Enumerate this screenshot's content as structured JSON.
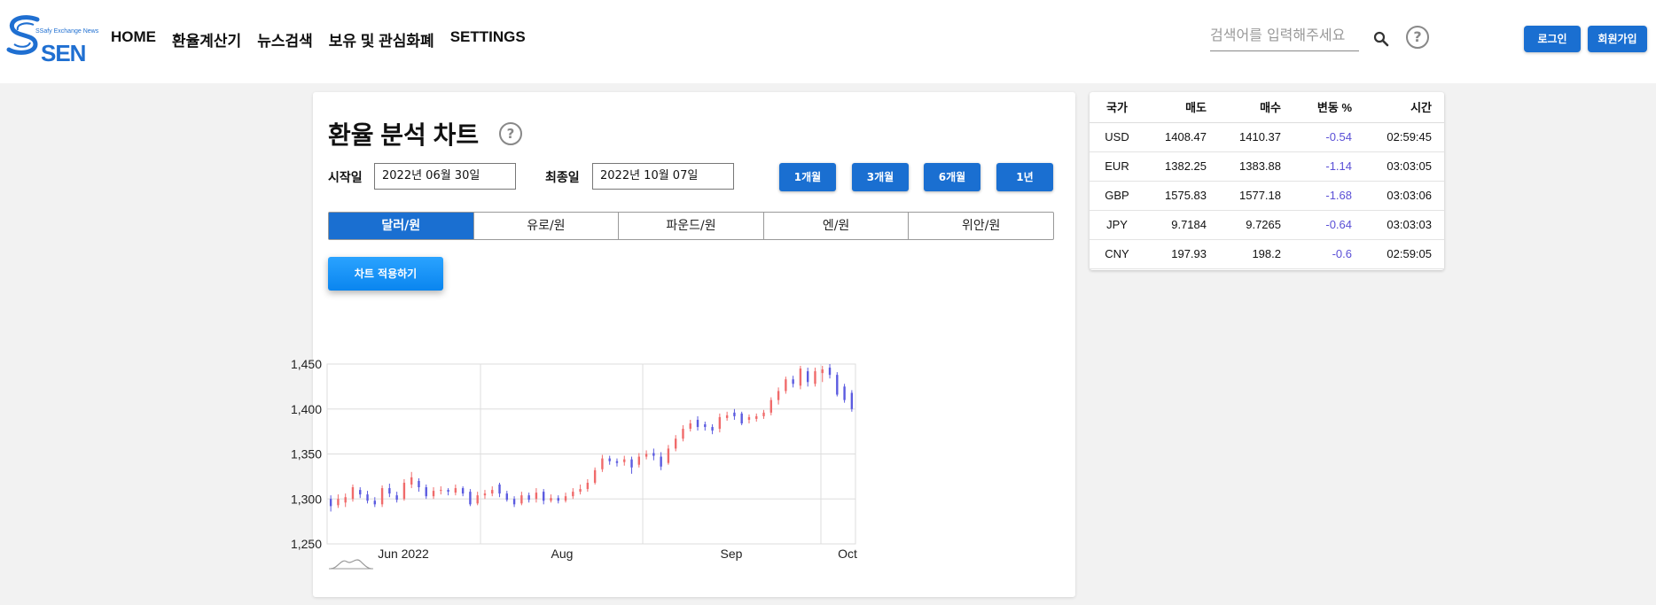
{
  "header": {
    "logo": {
      "subtitle": "SSafy Exchange News",
      "text": "SEN"
    },
    "nav": [
      "HOME",
      "환율계산기",
      "뉴스검색",
      "보유 및 관심화폐",
      "SETTINGS"
    ],
    "search": {
      "placeholder": "검색어를 입력해주세요",
      "value": ""
    },
    "help_symbol": "?",
    "login_label": "로그인",
    "signup_label": "회원가입"
  },
  "main": {
    "title": "환율 분석 차트",
    "help_symbol": "?",
    "start_label": "시작일",
    "start_date": "2022년 06월 30일",
    "end_label": "최종일",
    "end_date": "2022년 10월 07일",
    "period_buttons": [
      "1개월",
      "3개월",
      "6개월",
      "1년"
    ],
    "currency_tabs": [
      "달러/원",
      "유로/원",
      "파운드/원",
      "엔/원",
      "위안/원"
    ],
    "active_tab": 0,
    "apply_label": "차트 적용하기"
  },
  "chart_data": {
    "type": "candlestick",
    "ylim": [
      1250,
      1450
    ],
    "yticks": [
      "1,450",
      "1,400",
      "1,350",
      "1,300",
      "1,250"
    ],
    "xticks": [
      "Jun 2022",
      "Aug",
      "Sep",
      "Oct"
    ],
    "up_color": "#f06b6b",
    "down_color": "#5b5be0",
    "candles": [
      {
        "o": 1300,
        "c": 1292,
        "h": 1304,
        "l": 1286
      },
      {
        "o": 1293,
        "c": 1300,
        "h": 1305,
        "l": 1290
      },
      {
        "o": 1296,
        "c": 1302,
        "h": 1306,
        "l": 1291
      },
      {
        "o": 1300,
        "c": 1313,
        "h": 1316,
        "l": 1297
      },
      {
        "o": 1310,
        "c": 1305,
        "h": 1313,
        "l": 1301
      },
      {
        "o": 1305,
        "c": 1298,
        "h": 1309,
        "l": 1295
      },
      {
        "o": 1298,
        "c": 1294,
        "h": 1302,
        "l": 1291
      },
      {
        "o": 1294,
        "c": 1312,
        "h": 1315,
        "l": 1291
      },
      {
        "o": 1312,
        "c": 1306,
        "h": 1317,
        "l": 1302
      },
      {
        "o": 1304,
        "c": 1299,
        "h": 1308,
        "l": 1296
      },
      {
        "o": 1300,
        "c": 1318,
        "h": 1322,
        "l": 1298
      },
      {
        "o": 1316,
        "c": 1324,
        "h": 1330,
        "l": 1312
      },
      {
        "o": 1320,
        "c": 1313,
        "h": 1323,
        "l": 1308
      },
      {
        "o": 1313,
        "c": 1303,
        "h": 1316,
        "l": 1300
      },
      {
        "o": 1303,
        "c": 1309,
        "h": 1313,
        "l": 1300
      },
      {
        "o": 1309,
        "c": 1310,
        "h": 1314,
        "l": 1305
      },
      {
        "o": 1310,
        "c": 1308,
        "h": 1312,
        "l": 1304
      },
      {
        "o": 1307,
        "c": 1312,
        "h": 1316,
        "l": 1304
      },
      {
        "o": 1312,
        "c": 1306,
        "h": 1314,
        "l": 1303
      },
      {
        "o": 1308,
        "c": 1294,
        "h": 1311,
        "l": 1292
      },
      {
        "o": 1295,
        "c": 1304,
        "h": 1308,
        "l": 1293
      },
      {
        "o": 1304,
        "c": 1306,
        "h": 1310,
        "l": 1300
      },
      {
        "o": 1306,
        "c": 1310,
        "h": 1314,
        "l": 1303
      },
      {
        "o": 1316,
        "c": 1306,
        "h": 1318,
        "l": 1302
      },
      {
        "o": 1306,
        "c": 1299,
        "h": 1309,
        "l": 1297
      },
      {
        "o": 1300,
        "c": 1294,
        "h": 1303,
        "l": 1291
      },
      {
        "o": 1295,
        "c": 1304,
        "h": 1308,
        "l": 1293
      },
      {
        "o": 1304,
        "c": 1299,
        "h": 1307,
        "l": 1296
      },
      {
        "o": 1300,
        "c": 1307,
        "h": 1312,
        "l": 1296
      },
      {
        "o": 1308,
        "c": 1298,
        "h": 1311,
        "l": 1294
      },
      {
        "o": 1298,
        "c": 1301,
        "h": 1305,
        "l": 1296
      },
      {
        "o": 1301,
        "c": 1298,
        "h": 1304,
        "l": 1295
      },
      {
        "o": 1298,
        "c": 1303,
        "h": 1307,
        "l": 1296
      },
      {
        "o": 1303,
        "c": 1308,
        "h": 1312,
        "l": 1300
      },
      {
        "o": 1308,
        "c": 1311,
        "h": 1316,
        "l": 1305
      },
      {
        "o": 1311,
        "c": 1318,
        "h": 1322,
        "l": 1308
      },
      {
        "o": 1318,
        "c": 1332,
        "h": 1335,
        "l": 1316
      },
      {
        "o": 1333,
        "c": 1345,
        "h": 1349,
        "l": 1330
      },
      {
        "o": 1345,
        "c": 1342,
        "h": 1348,
        "l": 1338
      },
      {
        "o": 1342,
        "c": 1340,
        "h": 1345,
        "l": 1336
      },
      {
        "o": 1341,
        "c": 1344,
        "h": 1348,
        "l": 1337
      },
      {
        "o": 1344,
        "c": 1335,
        "h": 1347,
        "l": 1328
      },
      {
        "o": 1338,
        "c": 1347,
        "h": 1351,
        "l": 1335
      },
      {
        "o": 1347,
        "c": 1350,
        "h": 1354,
        "l": 1344
      },
      {
        "o": 1351,
        "c": 1348,
        "h": 1356,
        "l": 1343
      },
      {
        "o": 1347,
        "c": 1336,
        "h": 1352,
        "l": 1332
      },
      {
        "o": 1340,
        "c": 1356,
        "h": 1360,
        "l": 1338
      },
      {
        "o": 1356,
        "c": 1367,
        "h": 1371,
        "l": 1353
      },
      {
        "o": 1367,
        "c": 1378,
        "h": 1382,
        "l": 1364
      },
      {
        "o": 1378,
        "c": 1384,
        "h": 1388,
        "l": 1375
      },
      {
        "o": 1388,
        "c": 1380,
        "h": 1392,
        "l": 1376
      },
      {
        "o": 1383,
        "c": 1380,
        "h": 1386,
        "l": 1376
      },
      {
        "o": 1380,
        "c": 1376,
        "h": 1383,
        "l": 1372
      },
      {
        "o": 1378,
        "c": 1391,
        "h": 1395,
        "l": 1374
      },
      {
        "o": 1390,
        "c": 1393,
        "h": 1397,
        "l": 1387
      },
      {
        "o": 1396,
        "c": 1392,
        "h": 1400,
        "l": 1388
      },
      {
        "o": 1395,
        "c": 1384,
        "h": 1397,
        "l": 1382
      },
      {
        "o": 1388,
        "c": 1391,
        "h": 1394,
        "l": 1384
      },
      {
        "o": 1389,
        "c": 1392,
        "h": 1395,
        "l": 1386
      },
      {
        "o": 1392,
        "c": 1396,
        "h": 1399,
        "l": 1389
      },
      {
        "o": 1396,
        "c": 1410,
        "h": 1413,
        "l": 1393
      },
      {
        "o": 1410,
        "c": 1420,
        "h": 1424,
        "l": 1405
      },
      {
        "o": 1420,
        "c": 1433,
        "h": 1436,
        "l": 1417
      },
      {
        "o": 1433,
        "c": 1428,
        "h": 1437,
        "l": 1424
      },
      {
        "o": 1426,
        "c": 1445,
        "h": 1448,
        "l": 1422
      },
      {
        "o": 1442,
        "c": 1430,
        "h": 1446,
        "l": 1425
      },
      {
        "o": 1428,
        "c": 1442,
        "h": 1446,
        "l": 1425
      },
      {
        "o": 1440,
        "c": 1444,
        "h": 1448,
        "l": 1430
      },
      {
        "o": 1446,
        "c": 1438,
        "h": 1450,
        "l": 1434
      },
      {
        "o": 1438,
        "c": 1416,
        "h": 1441,
        "l": 1414
      },
      {
        "o": 1425,
        "c": 1410,
        "h": 1428,
        "l": 1407
      },
      {
        "o": 1418,
        "c": 1400,
        "h": 1421,
        "l": 1397
      }
    ]
  },
  "rates": {
    "headers": [
      "국가",
      "매도",
      "매수",
      "변동 %",
      "시간"
    ],
    "rows": [
      [
        "USD",
        "1408.47",
        "1410.37",
        "-0.54",
        "02:59:45"
      ],
      [
        "EUR",
        "1382.25",
        "1383.88",
        "-1.14",
        "03:03:05"
      ],
      [
        "GBP",
        "1575.83",
        "1577.18",
        "-1.68",
        "03:03:06"
      ],
      [
        "JPY",
        "9.7184",
        "9.7265",
        "-0.64",
        "03:03:03"
      ],
      [
        "CNY",
        "197.93",
        "198.2",
        "-0.6",
        "02:59:05"
      ]
    ]
  }
}
